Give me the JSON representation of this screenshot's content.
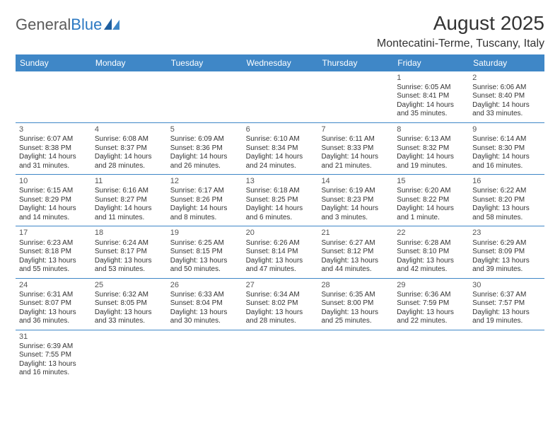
{
  "logo": {
    "text1": "General",
    "text2": "Blue"
  },
  "title": "August 2025",
  "location": "Montecatini-Terme, Tuscany, Italy",
  "colors": {
    "header_row_bg": "#3f87c7",
    "header_row_text": "#ffffff",
    "row_border": "#3f87c7",
    "text": "#333333",
    "daynum_text": "#555555",
    "logo_gray": "#5a5a5a",
    "logo_blue": "#2b78c2",
    "page_bg": "#ffffff"
  },
  "fonts": {
    "title_size_pt": 21,
    "location_size_pt": 12,
    "day_header_size_pt": 9,
    "daynum_size_pt": 8,
    "details_size_pt": 7.5
  },
  "day_headers": [
    "Sunday",
    "Monday",
    "Tuesday",
    "Wednesday",
    "Thursday",
    "Friday",
    "Saturday"
  ],
  "weeks": [
    [
      null,
      null,
      null,
      null,
      null,
      {
        "day": "1",
        "sunrise": "Sunrise: 6:05 AM",
        "sunset": "Sunset: 8:41 PM",
        "daylight1": "Daylight: 14 hours",
        "daylight2": "and 35 minutes."
      },
      {
        "day": "2",
        "sunrise": "Sunrise: 6:06 AM",
        "sunset": "Sunset: 8:40 PM",
        "daylight1": "Daylight: 14 hours",
        "daylight2": "and 33 minutes."
      }
    ],
    [
      {
        "day": "3",
        "sunrise": "Sunrise: 6:07 AM",
        "sunset": "Sunset: 8:38 PM",
        "daylight1": "Daylight: 14 hours",
        "daylight2": "and 31 minutes."
      },
      {
        "day": "4",
        "sunrise": "Sunrise: 6:08 AM",
        "sunset": "Sunset: 8:37 PM",
        "daylight1": "Daylight: 14 hours",
        "daylight2": "and 28 minutes."
      },
      {
        "day": "5",
        "sunrise": "Sunrise: 6:09 AM",
        "sunset": "Sunset: 8:36 PM",
        "daylight1": "Daylight: 14 hours",
        "daylight2": "and 26 minutes."
      },
      {
        "day": "6",
        "sunrise": "Sunrise: 6:10 AM",
        "sunset": "Sunset: 8:34 PM",
        "daylight1": "Daylight: 14 hours",
        "daylight2": "and 24 minutes."
      },
      {
        "day": "7",
        "sunrise": "Sunrise: 6:11 AM",
        "sunset": "Sunset: 8:33 PM",
        "daylight1": "Daylight: 14 hours",
        "daylight2": "and 21 minutes."
      },
      {
        "day": "8",
        "sunrise": "Sunrise: 6:13 AM",
        "sunset": "Sunset: 8:32 PM",
        "daylight1": "Daylight: 14 hours",
        "daylight2": "and 19 minutes."
      },
      {
        "day": "9",
        "sunrise": "Sunrise: 6:14 AM",
        "sunset": "Sunset: 8:30 PM",
        "daylight1": "Daylight: 14 hours",
        "daylight2": "and 16 minutes."
      }
    ],
    [
      {
        "day": "10",
        "sunrise": "Sunrise: 6:15 AM",
        "sunset": "Sunset: 8:29 PM",
        "daylight1": "Daylight: 14 hours",
        "daylight2": "and 14 minutes."
      },
      {
        "day": "11",
        "sunrise": "Sunrise: 6:16 AM",
        "sunset": "Sunset: 8:27 PM",
        "daylight1": "Daylight: 14 hours",
        "daylight2": "and 11 minutes."
      },
      {
        "day": "12",
        "sunrise": "Sunrise: 6:17 AM",
        "sunset": "Sunset: 8:26 PM",
        "daylight1": "Daylight: 14 hours",
        "daylight2": "and 8 minutes."
      },
      {
        "day": "13",
        "sunrise": "Sunrise: 6:18 AM",
        "sunset": "Sunset: 8:25 PM",
        "daylight1": "Daylight: 14 hours",
        "daylight2": "and 6 minutes."
      },
      {
        "day": "14",
        "sunrise": "Sunrise: 6:19 AM",
        "sunset": "Sunset: 8:23 PM",
        "daylight1": "Daylight: 14 hours",
        "daylight2": "and 3 minutes."
      },
      {
        "day": "15",
        "sunrise": "Sunrise: 6:20 AM",
        "sunset": "Sunset: 8:22 PM",
        "daylight1": "Daylight: 14 hours",
        "daylight2": "and 1 minute."
      },
      {
        "day": "16",
        "sunrise": "Sunrise: 6:22 AM",
        "sunset": "Sunset: 8:20 PM",
        "daylight1": "Daylight: 13 hours",
        "daylight2": "and 58 minutes."
      }
    ],
    [
      {
        "day": "17",
        "sunrise": "Sunrise: 6:23 AM",
        "sunset": "Sunset: 8:18 PM",
        "daylight1": "Daylight: 13 hours",
        "daylight2": "and 55 minutes."
      },
      {
        "day": "18",
        "sunrise": "Sunrise: 6:24 AM",
        "sunset": "Sunset: 8:17 PM",
        "daylight1": "Daylight: 13 hours",
        "daylight2": "and 53 minutes."
      },
      {
        "day": "19",
        "sunrise": "Sunrise: 6:25 AM",
        "sunset": "Sunset: 8:15 PM",
        "daylight1": "Daylight: 13 hours",
        "daylight2": "and 50 minutes."
      },
      {
        "day": "20",
        "sunrise": "Sunrise: 6:26 AM",
        "sunset": "Sunset: 8:14 PM",
        "daylight1": "Daylight: 13 hours",
        "daylight2": "and 47 minutes."
      },
      {
        "day": "21",
        "sunrise": "Sunrise: 6:27 AM",
        "sunset": "Sunset: 8:12 PM",
        "daylight1": "Daylight: 13 hours",
        "daylight2": "and 44 minutes."
      },
      {
        "day": "22",
        "sunrise": "Sunrise: 6:28 AM",
        "sunset": "Sunset: 8:10 PM",
        "daylight1": "Daylight: 13 hours",
        "daylight2": "and 42 minutes."
      },
      {
        "day": "23",
        "sunrise": "Sunrise: 6:29 AM",
        "sunset": "Sunset: 8:09 PM",
        "daylight1": "Daylight: 13 hours",
        "daylight2": "and 39 minutes."
      }
    ],
    [
      {
        "day": "24",
        "sunrise": "Sunrise: 6:31 AM",
        "sunset": "Sunset: 8:07 PM",
        "daylight1": "Daylight: 13 hours",
        "daylight2": "and 36 minutes."
      },
      {
        "day": "25",
        "sunrise": "Sunrise: 6:32 AM",
        "sunset": "Sunset: 8:05 PM",
        "daylight1": "Daylight: 13 hours",
        "daylight2": "and 33 minutes."
      },
      {
        "day": "26",
        "sunrise": "Sunrise: 6:33 AM",
        "sunset": "Sunset: 8:04 PM",
        "daylight1": "Daylight: 13 hours",
        "daylight2": "and 30 minutes."
      },
      {
        "day": "27",
        "sunrise": "Sunrise: 6:34 AM",
        "sunset": "Sunset: 8:02 PM",
        "daylight1": "Daylight: 13 hours",
        "daylight2": "and 28 minutes."
      },
      {
        "day": "28",
        "sunrise": "Sunrise: 6:35 AM",
        "sunset": "Sunset: 8:00 PM",
        "daylight1": "Daylight: 13 hours",
        "daylight2": "and 25 minutes."
      },
      {
        "day": "29",
        "sunrise": "Sunrise: 6:36 AM",
        "sunset": "Sunset: 7:59 PM",
        "daylight1": "Daylight: 13 hours",
        "daylight2": "and 22 minutes."
      },
      {
        "day": "30",
        "sunrise": "Sunrise: 6:37 AM",
        "sunset": "Sunset: 7:57 PM",
        "daylight1": "Daylight: 13 hours",
        "daylight2": "and 19 minutes."
      }
    ],
    [
      {
        "day": "31",
        "sunrise": "Sunrise: 6:39 AM",
        "sunset": "Sunset: 7:55 PM",
        "daylight1": "Daylight: 13 hours",
        "daylight2": "and 16 minutes."
      },
      null,
      null,
      null,
      null,
      null,
      null
    ]
  ]
}
